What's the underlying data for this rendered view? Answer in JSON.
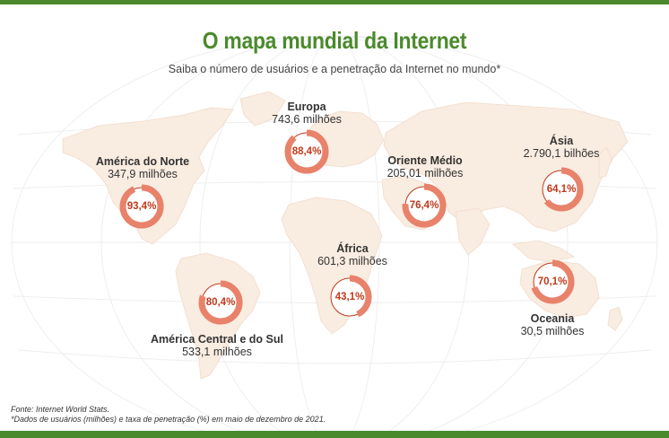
{
  "header": {
    "title": "O mapa mundial da Internet",
    "subtitle": "Saiba o número de usuários e a penetração da Internet no mundo*"
  },
  "colors": {
    "accent_green": "#4a8a2c",
    "ring": "#e8826a",
    "ring_track": "#c0391b",
    "continent": "#f9ece1",
    "percent_text": "#c0391b"
  },
  "regions": [
    {
      "name": "América do Norte",
      "users": "347,9 milhões",
      "penetration": 93.4,
      "penetration_label": "93,4%"
    },
    {
      "name": "Europa",
      "users": "743,6 milhões",
      "penetration": 88.4,
      "penetration_label": "88,4%"
    },
    {
      "name": "Oriente Médio",
      "users": "205,01 milhões",
      "penetration": 76.4,
      "penetration_label": "76,4%"
    },
    {
      "name": "Ásia",
      "users": "2.790,1 bilhões",
      "penetration": 64.1,
      "penetration_label": "64,1%"
    },
    {
      "name": "África",
      "users": "601,3 milhões",
      "penetration": 43.1,
      "penetration_label": "43,1%"
    },
    {
      "name": "América Central e do Sul",
      "users": "533,1 milhões",
      "penetration": 80.4,
      "penetration_label": "80,4%"
    },
    {
      "name": "Oceania",
      "users": "30,5 milhões",
      "penetration": 70.1,
      "penetration_label": "70,1%"
    }
  ],
  "footer": {
    "source": "Fonte: Internet World Stats.",
    "note": "*Dados de usuários (milhões) e taxa de penetração (%) em maio de dezembro de 2021."
  }
}
